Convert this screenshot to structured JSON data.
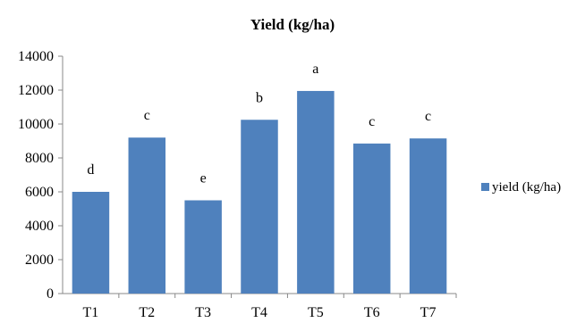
{
  "chart_data": {
    "type": "bar",
    "title": "Yield (kg/ha)",
    "xlabel": "",
    "ylabel": "",
    "categories": [
      "T1",
      "T2",
      "T3",
      "T4",
      "T5",
      "T6",
      "T7"
    ],
    "series": [
      {
        "name": "yield (kg/ha)",
        "values": [
          6000,
          9200,
          5500,
          10250,
          11950,
          8850,
          9150
        ],
        "labels": [
          "d",
          "c",
          "e",
          "b",
          "a",
          "c",
          "c"
        ],
        "color": "#4F81BD"
      }
    ],
    "ylim": [
      0,
      14000
    ],
    "yticks": [
      0,
      2000,
      4000,
      6000,
      8000,
      10000,
      12000,
      14000
    ],
    "grid": false,
    "legend": "right"
  }
}
